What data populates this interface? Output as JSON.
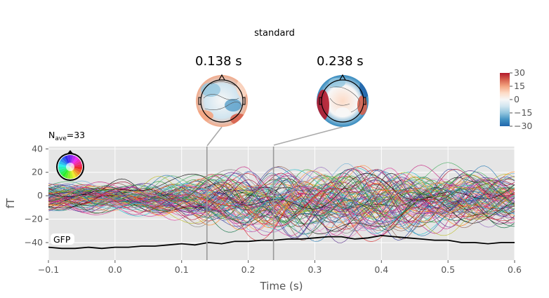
{
  "figure": {
    "title": "standard",
    "nave_prefix": "N",
    "nave_sub": "ave",
    "nave_suffix": "=33",
    "gfp_label": "GFP"
  },
  "topomaps": [
    {
      "time_label": "0.138 s",
      "time": 0.138
    },
    {
      "time_label": "0.238 s",
      "time": 0.238
    }
  ],
  "colorbar": {
    "ticks": [
      "30",
      "15",
      "0",
      "−15",
      "−30"
    ],
    "vmin": -30,
    "vmax": 30,
    "colors": [
      "#b2182b",
      "#d6604d",
      "#f4a582",
      "#fddbc7",
      "#f7f7f7",
      "#d1e5f0",
      "#92c5de",
      "#4393c3",
      "#2166ac"
    ]
  },
  "chart_data": {
    "type": "line",
    "title": "standard",
    "xlabel": "Time (s)",
    "ylabel": "fT",
    "xlim": [
      -0.1,
      0.6
    ],
    "ylim": [
      -55,
      42
    ],
    "xticks": [
      -0.1,
      0.0,
      0.1,
      0.2,
      0.3,
      0.4,
      0.5,
      0.6
    ],
    "xtick_labels": [
      "−0.1",
      "0.0",
      "0.1",
      "0.2",
      "0.3",
      "0.4",
      "0.5",
      "0.6"
    ],
    "yticks": [
      40,
      20,
      0,
      -20,
      -40
    ],
    "ytick_labels": [
      "40",
      "20",
      "0",
      "−20",
      "−40"
    ],
    "grid": true,
    "background": "#e5e5e5",
    "vlines": [
      0.138,
      0.238
    ],
    "n_channels": 102,
    "gfp": {
      "name": "GFP",
      "x": [
        -0.1,
        -0.08,
        -0.06,
        -0.04,
        -0.02,
        0.0,
        0.02,
        0.04,
        0.06,
        0.08,
        0.1,
        0.12,
        0.14,
        0.16,
        0.18,
        0.2,
        0.22,
        0.24,
        0.26,
        0.28,
        0.3,
        0.32,
        0.34,
        0.36,
        0.38,
        0.4,
        0.42,
        0.44,
        0.46,
        0.48,
        0.5,
        0.52,
        0.54,
        0.56,
        0.58,
        0.6
      ],
      "y": [
        -44,
        -45,
        -45,
        -44,
        -45,
        -44,
        -44,
        -43,
        -43,
        -42,
        -41,
        -42,
        -40,
        -41,
        -39,
        -39,
        -38,
        -38,
        -37,
        -37,
        -36,
        -35,
        -35,
        -37,
        -36,
        -34,
        -35,
        -36,
        -37,
        -38,
        -38,
        -40,
        -40,
        -41,
        -40,
        -40
      ]
    },
    "channel_envelope": {
      "x": [
        -0.1,
        0.0,
        0.1,
        0.2,
        0.3,
        0.4,
        0.5,
        0.6
      ],
      "max": [
        12,
        14,
        18,
        28,
        30,
        30,
        28,
        22
      ],
      "min": [
        -14,
        -16,
        -22,
        -40,
        -42,
        -40,
        -34,
        -26
      ]
    }
  }
}
